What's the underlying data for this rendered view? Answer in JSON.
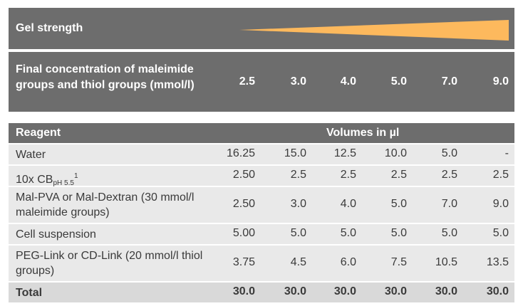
{
  "gel_strength": {
    "label": "Gel strength",
    "wedge_color": "#fdb95d"
  },
  "concentration": {
    "label": "Final concentration of maleimide groups and thiol groups (mmol/l)",
    "values": [
      "2.5",
      "3.0",
      "4.0",
      "5.0",
      "7.0",
      "9.0"
    ]
  },
  "reagent_header": {
    "label": "Reagent",
    "volumes": "Volumes in µl"
  },
  "rows": [
    {
      "label": "Water",
      "values": [
        "16.25",
        "15.0",
        "12.5",
        "10.0",
        "5.0",
        "-"
      ]
    },
    {
      "label": "10x CB",
      "sub": "pH 5.5",
      "sup": "1",
      "values": [
        "2.50",
        "2.5",
        "2.5",
        "2.5",
        "2.5",
        "2.5"
      ]
    },
    {
      "label": "Mal-PVA or Mal-Dextran (30 mmol/l maleimide groups)",
      "values": [
        "2.50",
        "3.0",
        "4.0",
        "5.0",
        "7.0",
        "9.0"
      ]
    },
    {
      "label": "Cell suspension",
      "values": [
        "5.00",
        "5.0",
        "5.0",
        "5.0",
        "5.0",
        "5.0"
      ]
    },
    {
      "label": "PEG-Link or CD-Link (20 mmol/l thiol groups)",
      "values": [
        "3.75",
        "4.5",
        "6.0",
        "7.5",
        "10.5",
        "13.5"
      ]
    }
  ],
  "total": {
    "label": "Total",
    "values": [
      "30.0",
      "30.0",
      "30.0",
      "30.0",
      "30.0",
      "30.0"
    ]
  }
}
